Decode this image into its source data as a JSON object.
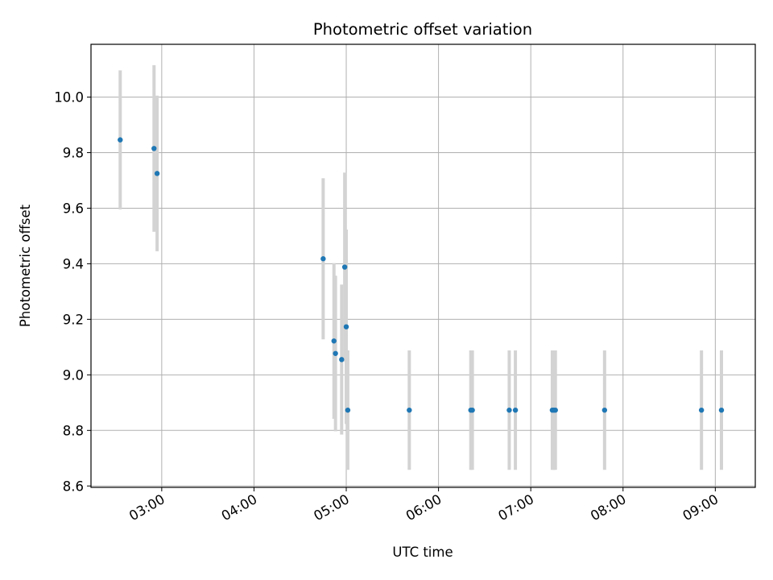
{
  "chart_data": {
    "type": "scatter",
    "title": "Photometric offset variation",
    "xlabel": "UTC time",
    "ylabel": "Photometric offset",
    "xlim": [
      "02:14",
      "09:26"
    ],
    "ylim": [
      8.595,
      10.19
    ],
    "grid": true,
    "x_tick_labels": [
      "03:00",
      "04:00",
      "05:00",
      "06:00",
      "07:00",
      "08:00",
      "09:00"
    ],
    "y_tick_values": [
      8.6,
      8.8,
      9.0,
      9.2,
      9.4,
      9.6,
      9.8,
      10.0
    ],
    "y_tick_labels": [
      "8.6",
      "8.8",
      "9.0",
      "9.2",
      "9.4",
      "9.6",
      "9.8",
      "10.0"
    ],
    "marker_color": "#1f77b4",
    "errorbar_color": "#d3d3d3",
    "points": [
      {
        "t": "02:33",
        "y": 9.846,
        "err": 0.25
      },
      {
        "t": "02:55",
        "y": 9.815,
        "err": 0.3
      },
      {
        "t": "02:57",
        "y": 9.725,
        "err": 0.28
      },
      {
        "t": "04:45",
        "y": 9.418,
        "err": 0.29
      },
      {
        "t": "04:52",
        "y": 9.122,
        "err": 0.28
      },
      {
        "t": "04:53",
        "y": 9.077,
        "err": 0.28
      },
      {
        "t": "04:57",
        "y": 9.055,
        "err": 0.27
      },
      {
        "t": "04:59",
        "y": 9.388,
        "err": 0.34
      },
      {
        "t": "05:00",
        "y": 9.173,
        "err": 0.35
      },
      {
        "t": "05:01",
        "y": 8.873,
        "err": 0.215
      },
      {
        "t": "05:41",
        "y": 8.873,
        "err": 0.215
      },
      {
        "t": "06:21",
        "y": 8.873,
        "err": 0.215
      },
      {
        "t": "06:22",
        "y": 8.873,
        "err": 0.215
      },
      {
        "t": "06:46",
        "y": 8.873,
        "err": 0.215
      },
      {
        "t": "06:50",
        "y": 8.873,
        "err": 0.215
      },
      {
        "t": "07:14",
        "y": 8.873,
        "err": 0.215
      },
      {
        "t": "07:15",
        "y": 8.873,
        "err": 0.215
      },
      {
        "t": "07:16",
        "y": 8.873,
        "err": 0.215
      },
      {
        "t": "07:48",
        "y": 8.873,
        "err": 0.215
      },
      {
        "t": "08:51",
        "y": 8.873,
        "err": 0.215
      },
      {
        "t": "09:04",
        "y": 8.873,
        "err": 0.215
      }
    ]
  }
}
